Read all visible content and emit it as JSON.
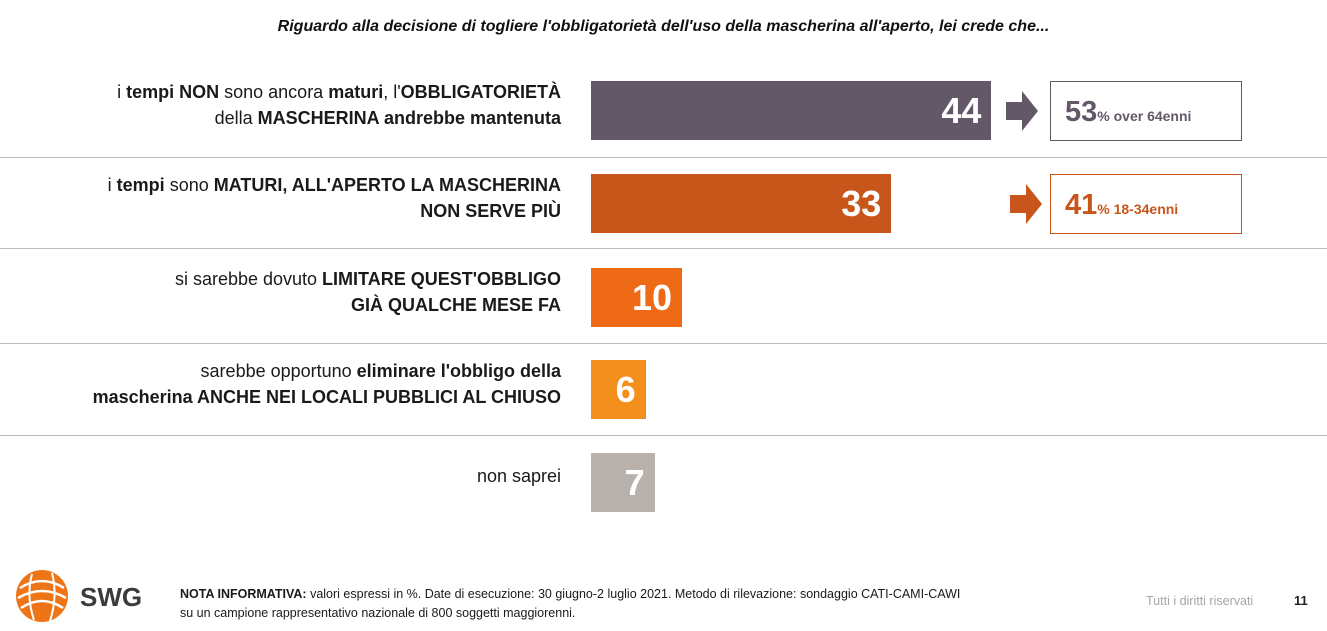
{
  "title": "Riguardo alla decisione di togliere l'obbligatorietà dell'uso della mascherina all'aperto, lei crede che...",
  "chart_data": {
    "type": "bar",
    "orientation": "horizontal",
    "unit": "%",
    "categories": [
      "i tempi NON sono ancora maturi, l'OBBLIGATORIETÀ della MASCHERINA andrebbe mantenuta",
      "i tempi sono MATURI, ALL'APERTO LA MASCHERINA NON SERVE PIÙ",
      "si sarebbe dovuto LIMITARE QUEST'OBBLIGO GIÀ QUALCHE MESE FA",
      "sarebbe opportuno eliminare l'obbligo della mascherina ANCHE NEI LOCALI PUBBLICI AL CHIUSO",
      "non saprei"
    ],
    "values": [
      44,
      33,
      10,
      6,
      7
    ],
    "labels": [
      "44",
      "33",
      "10",
      "6",
      "7"
    ],
    "bar_colors": [
      "#625868",
      "#c8561b",
      "#ee6a17",
      "#f28f1d",
      "#b9b1ab"
    ],
    "rows": [
      {
        "label_segments": [
          {
            "t": "i ",
            "b": false
          },
          {
            "t": "tempi NON",
            "b": true
          },
          {
            "t": " sono ancora ",
            "b": false
          },
          {
            "t": "maturi",
            "b": true
          },
          {
            "t": ", l'",
            "b": false
          },
          {
            "t": "OBBLIGATORIETÀ",
            "b": true
          },
          {
            "t": "\n",
            "b": false
          },
          {
            "t": "della ",
            "b": false
          },
          {
            "t": "MASCHERINA andrebbe mantenuta",
            "b": true
          }
        ]
      },
      {
        "label_segments": [
          {
            "t": "i ",
            "b": false
          },
          {
            "t": "tempi",
            "b": true
          },
          {
            "t": " sono ",
            "b": false
          },
          {
            "t": "MATURI, ALL'APERTO LA MASCHERINA",
            "b": true
          },
          {
            "t": "\n",
            "b": false
          },
          {
            "t": "NON SERVE PIÙ",
            "b": true
          }
        ]
      },
      {
        "label_segments": [
          {
            "t": "si sarebbe dovuto ",
            "b": false
          },
          {
            "t": "LIMITARE QUEST'OBBLIGO",
            "b": true
          },
          {
            "t": "\n",
            "b": false
          },
          {
            "t": "GIÀ QUALCHE MESE FA",
            "b": true
          }
        ]
      },
      {
        "label_segments": [
          {
            "t": "sarebbe opportuno ",
            "b": false
          },
          {
            "t": "eliminare l'obbligo della",
            "b": true
          },
          {
            "t": "\n",
            "b": false
          },
          {
            "t": "mascherina ANCHE NEI LOCALI PUBBLICI AL CHIUSO",
            "b": true
          }
        ]
      },
      {
        "label_segments": [
          {
            "t": "non saprei",
            "b": false
          }
        ]
      }
    ],
    "xlim": [
      0,
      100
    ],
    "grid": false,
    "legend": "none",
    "callouts": [
      {
        "row": 0,
        "value": "53",
        "suffix": "% over 64enni",
        "color": "#625868"
      },
      {
        "row": 1,
        "value": "41",
        "suffix": "% 18-34enni",
        "color": "#c8561b"
      }
    ]
  },
  "footer": {
    "logo_text": "SWG",
    "note_label": "NOTA INFORMATIVA:",
    "note_line1": " valori espressi in %. Date di esecuzione: 30 giugno-2 luglio 2021. Metodo di rilevazione: sondaggio CATI-CAMI-CAWI",
    "note_line2": "su un campione rappresentativo nazionale di 800 soggetti maggiorenni.",
    "rights": "Tutti i diritti riservati",
    "page_number": "11"
  },
  "colors": {
    "separator": "#bdbdbd",
    "logo_orange": "#ee7418",
    "logo_text": "#3b3b3b"
  }
}
